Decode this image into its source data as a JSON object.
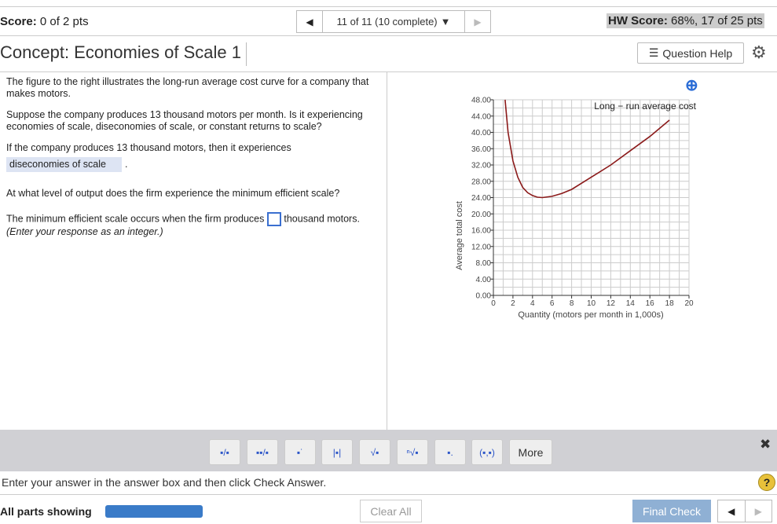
{
  "header": {
    "score_label": "Score:",
    "score_value": "0 of 2 pts",
    "progress": "11 of 11 (10 complete)",
    "hw_label": "HW Score:",
    "hw_value": "68%, 17 of 25 pts"
  },
  "concept": "Concept: Economies of Scale 1",
  "question_help": "Question Help",
  "question": {
    "p1": "The figure to the right illustrates the long-run average cost curve for a company that makes motors.",
    "p2": "Suppose the company produces 13 thousand motors per month. Is it experiencing economies of scale, diseconomies of scale, or constant returns to scale?",
    "p3": "If the company produces 13 thousand motors, then it experiences",
    "answer1": "diseconomies of scale",
    "p4": "At what level of output does the firm experience the minimum efficient scale?",
    "p5a": "The minimum efficient scale occurs when the firm produces",
    "p5b": "thousand motors.",
    "p6": "(Enter your response as an integer.)"
  },
  "chart_data": {
    "type": "line",
    "xlabel": "Quantity (motors per month in 1,000s)",
    "ylabel": "Average total cost",
    "xlim": [
      0,
      20
    ],
    "ylim": [
      0,
      48
    ],
    "xticks": [
      "0",
      "2",
      "4",
      "6",
      "8",
      "10",
      "12",
      "14",
      "16",
      "18",
      "20"
    ],
    "yticks": [
      "0.00",
      "4.00",
      "8.00",
      "12.00",
      "16.00",
      "20.00",
      "24.00",
      "28.00",
      "32.00",
      "36.00",
      "40.00",
      "44.00",
      "48.00"
    ],
    "grid": true,
    "series": [
      {
        "name": "Long − run average cost",
        "color": "#8b1a1a",
        "x": [
          1.2,
          1.5,
          2,
          2.5,
          3,
          3.5,
          4,
          4.5,
          5,
          6,
          7,
          8,
          10,
          12,
          14,
          16,
          18
        ],
        "y": [
          48,
          40,
          33,
          29,
          26.5,
          25.2,
          24.5,
          24.1,
          24,
          24.3,
          25,
          26,
          29,
          32,
          35.5,
          39,
          43
        ]
      }
    ]
  },
  "toolbar": {
    "more": "More"
  },
  "footer": {
    "instruction": "Enter your answer in the answer box and then click Check Answer.",
    "all_parts": "All parts showing",
    "progress_fraction": 1.0,
    "clear_all": "Clear All",
    "final_check": "Final Check"
  }
}
